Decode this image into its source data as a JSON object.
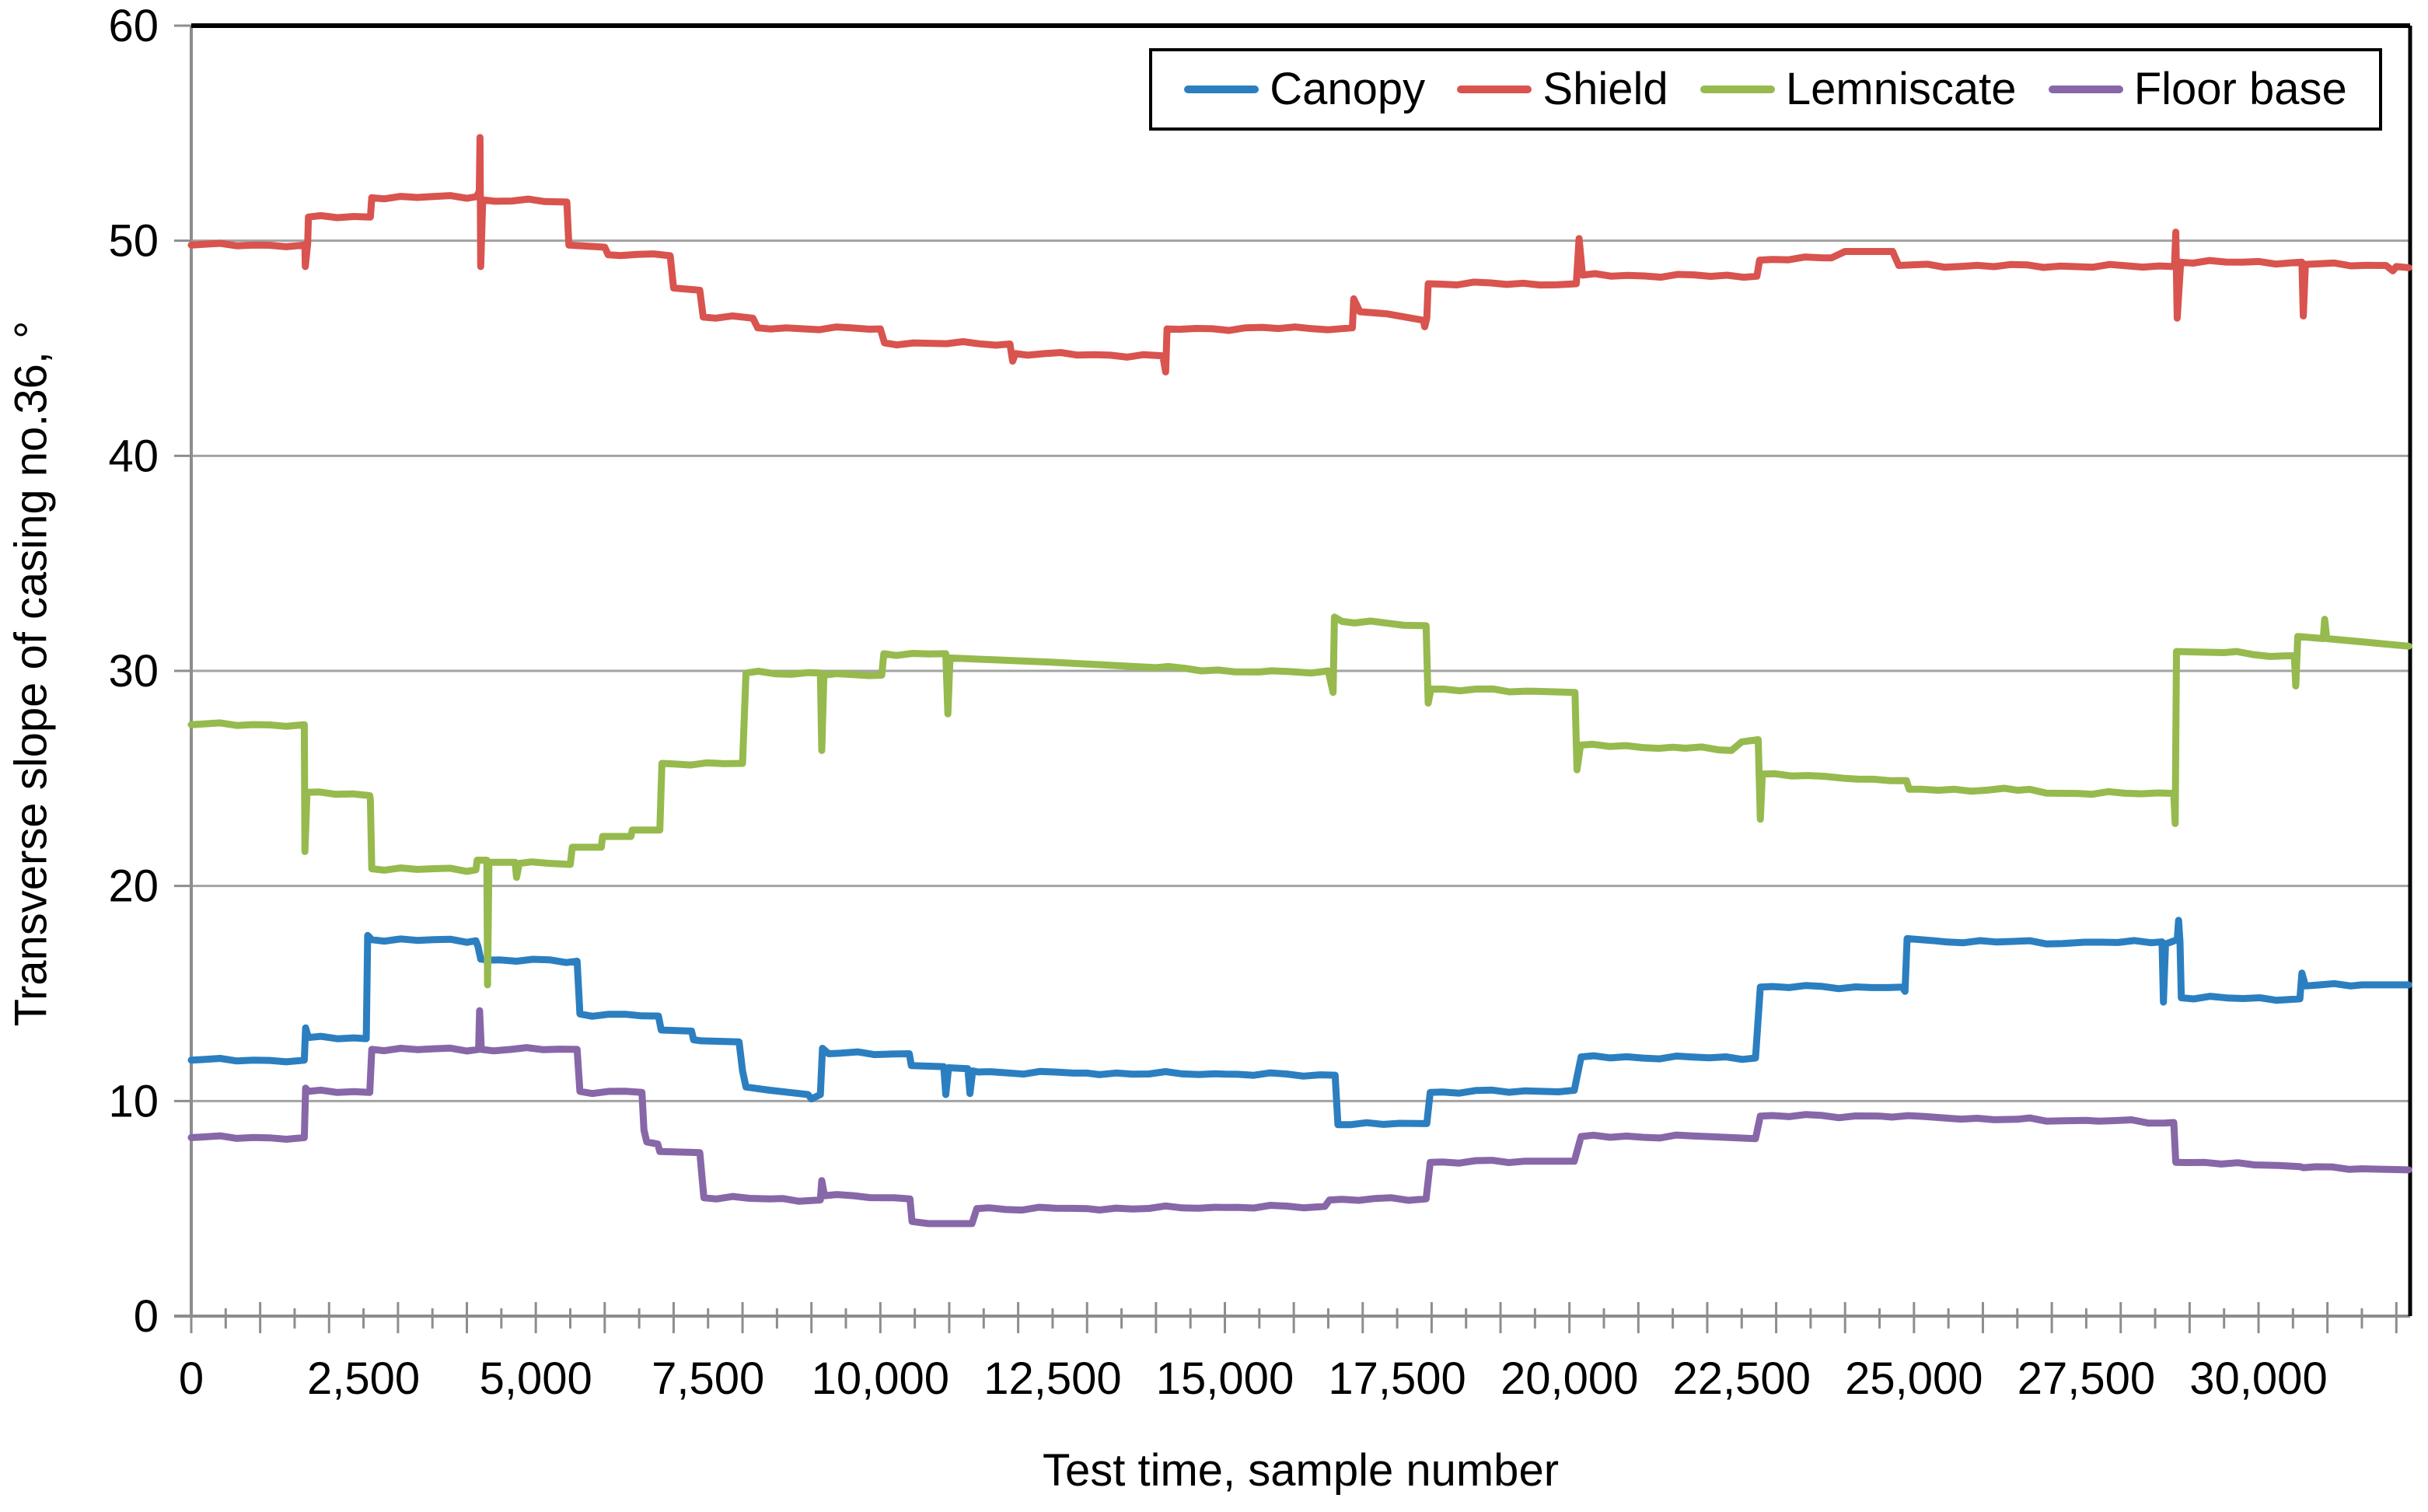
{
  "chart_data": {
    "type": "line",
    "title": "",
    "x_axis": {
      "title": "Test time, sample number",
      "min": 0,
      "max": 32200,
      "tick_labels": [
        "0",
        "2,500",
        "5,000",
        "7,500",
        "10,000",
        "12,500",
        "15,000",
        "17,500",
        "20,000",
        "22,500",
        "25,000",
        "27,500",
        "30,000"
      ],
      "label_interval": 2500,
      "major_tick_interval": 1000,
      "minor_tick_interval": 500
    },
    "y_axis": {
      "title": "Transverse slope of casing no.36, °",
      "min": 0,
      "max": 60,
      "tick_labels": [
        "0",
        "10",
        "20",
        "30",
        "40",
        "50",
        "60"
      ],
      "tick_interval": 10,
      "grid": true
    },
    "legend_position": "top-right",
    "colors": {
      "grid": "#A3A3A3",
      "axis_line": "#8D8D8D",
      "plot_border": "#000000",
      "text": "#000000"
    },
    "series": [
      {
        "name": "Canopy",
        "color": "#2B7FC0",
        "points": [
          [
            0,
            11.9
          ],
          [
            1640,
            11.9
          ],
          [
            1660,
            13.4
          ],
          [
            1700,
            12.95
          ],
          [
            2540,
            12.9
          ],
          [
            2560,
            17.7
          ],
          [
            2620,
            17.5
          ],
          [
            4130,
            17.45
          ],
          [
            4160,
            17.2
          ],
          [
            4200,
            16.6
          ],
          [
            4300,
            16.55
          ],
          [
            5600,
            16.5
          ],
          [
            5640,
            14.05
          ],
          [
            6780,
            13.95
          ],
          [
            6820,
            13.3
          ],
          [
            7260,
            13.25
          ],
          [
            7290,
            12.85
          ],
          [
            7400,
            12.8
          ],
          [
            7950,
            12.75
          ],
          [
            8000,
            11.4
          ],
          [
            8050,
            10.65
          ],
          [
            8400,
            10.5
          ],
          [
            8950,
            10.3
          ],
          [
            9000,
            10.1
          ],
          [
            9130,
            10.3
          ],
          [
            9160,
            12.45
          ],
          [
            9250,
            12.2
          ],
          [
            10420,
            12.2
          ],
          [
            10450,
            11.65
          ],
          [
            10920,
            11.6
          ],
          [
            10950,
            10.3
          ],
          [
            10990,
            11.55
          ],
          [
            11270,
            11.5
          ],
          [
            11300,
            10.35
          ],
          [
            11340,
            11.4
          ],
          [
            11420,
            11.35
          ],
          [
            13000,
            11.3
          ],
          [
            15000,
            11.25
          ],
          [
            16600,
            11.2
          ],
          [
            16640,
            8.9
          ],
          [
            17930,
            8.95
          ],
          [
            17980,
            10.4
          ],
          [
            20070,
            10.5
          ],
          [
            20170,
            12.05
          ],
          [
            22700,
            12.0
          ],
          [
            22770,
            15.3
          ],
          [
            24830,
            15.3
          ],
          [
            24870,
            15.1
          ],
          [
            24900,
            17.55
          ],
          [
            25300,
            17.45
          ],
          [
            27300,
            17.35
          ],
          [
            28600,
            17.4
          ],
          [
            28620,
            14.6
          ],
          [
            28650,
            17.3
          ],
          [
            28820,
            17.5
          ],
          [
            28840,
            18.4
          ],
          [
            28860,
            17.4
          ],
          [
            28880,
            14.8
          ],
          [
            30600,
            14.75
          ],
          [
            30630,
            15.95
          ],
          [
            30680,
            15.35
          ],
          [
            31500,
            15.4
          ],
          [
            32180,
            15.4
          ]
        ]
      },
      {
        "name": "Shield",
        "color": "#D9534F",
        "points": [
          [
            0,
            49.8
          ],
          [
            1650,
            49.8
          ],
          [
            1655,
            48.8
          ],
          [
            1690,
            49.9
          ],
          [
            1700,
            51.1
          ],
          [
            2600,
            51.1
          ],
          [
            2620,
            52.0
          ],
          [
            4140,
            52.05
          ],
          [
            4180,
            52.3
          ],
          [
            4190,
            54.8
          ],
          [
            4200,
            48.8
          ],
          [
            4230,
            51.9
          ],
          [
            5450,
            51.8
          ],
          [
            5480,
            49.8
          ],
          [
            6000,
            49.7
          ],
          [
            6050,
            49.35
          ],
          [
            6950,
            49.3
          ],
          [
            7000,
            47.8
          ],
          [
            7380,
            47.7
          ],
          [
            7430,
            46.45
          ],
          [
            8150,
            46.4
          ],
          [
            8220,
            45.95
          ],
          [
            10000,
            45.9
          ],
          [
            10060,
            45.25
          ],
          [
            11880,
            45.2
          ],
          [
            11920,
            44.4
          ],
          [
            11960,
            44.75
          ],
          [
            14100,
            44.65
          ],
          [
            14140,
            43.9
          ],
          [
            14160,
            45.9
          ],
          [
            16850,
            45.95
          ],
          [
            16870,
            47.3
          ],
          [
            16960,
            46.7
          ],
          [
            17350,
            46.6
          ],
          [
            17880,
            46.3
          ],
          [
            17900,
            46.0
          ],
          [
            17930,
            46.4
          ],
          [
            17950,
            48.0
          ],
          [
            20100,
            48.0
          ],
          [
            20140,
            50.1
          ],
          [
            20190,
            48.4
          ],
          [
            22720,
            48.35
          ],
          [
            22760,
            49.1
          ],
          [
            23800,
            49.2
          ],
          [
            24000,
            49.5
          ],
          [
            24690,
            49.5
          ],
          [
            24780,
            48.85
          ],
          [
            28780,
            48.8
          ],
          [
            28800,
            50.4
          ],
          [
            28820,
            46.4
          ],
          [
            28870,
            49.0
          ],
          [
            30630,
            49.0
          ],
          [
            30650,
            46.5
          ],
          [
            30680,
            48.9
          ],
          [
            31850,
            48.85
          ],
          [
            31950,
            48.6
          ],
          [
            32000,
            48.8
          ],
          [
            32180,
            48.75
          ]
        ]
      },
      {
        "name": "Lemniscate",
        "color": "#96BA4E",
        "points": [
          [
            0,
            27.5
          ],
          [
            1640,
            27.5
          ],
          [
            1650,
            21.6
          ],
          [
            1680,
            24.35
          ],
          [
            2590,
            24.2
          ],
          [
            2600,
            24.0
          ],
          [
            2620,
            20.8
          ],
          [
            4130,
            20.75
          ],
          [
            4150,
            21.2
          ],
          [
            4290,
            21.2
          ],
          [
            4300,
            15.4
          ],
          [
            4320,
            21.1
          ],
          [
            4700,
            21.1
          ],
          [
            4720,
            20.4
          ],
          [
            4760,
            21.05
          ],
          [
            5500,
            21.0
          ],
          [
            5530,
            21.8
          ],
          [
            5950,
            21.8
          ],
          [
            5970,
            22.3
          ],
          [
            6380,
            22.3
          ],
          [
            6400,
            22.6
          ],
          [
            6800,
            22.6
          ],
          [
            6830,
            25.7
          ],
          [
            8000,
            25.7
          ],
          [
            8050,
            29.9
          ],
          [
            9130,
            29.9
          ],
          [
            9150,
            26.3
          ],
          [
            9180,
            29.8
          ],
          [
            10020,
            29.8
          ],
          [
            10050,
            30.8
          ],
          [
            10950,
            30.8
          ],
          [
            10980,
            28.0
          ],
          [
            11010,
            30.6
          ],
          [
            12500,
            30.4
          ],
          [
            14000,
            30.15
          ],
          [
            15500,
            29.95
          ],
          [
            16250,
            29.9
          ],
          [
            16500,
            30.0
          ],
          [
            16570,
            29.0
          ],
          [
            16590,
            32.5
          ],
          [
            16700,
            32.3
          ],
          [
            17920,
            32.1
          ],
          [
            17950,
            28.5
          ],
          [
            17990,
            29.15
          ],
          [
            19500,
            29.05
          ],
          [
            20080,
            29.0
          ],
          [
            20110,
            25.4
          ],
          [
            20160,
            26.55
          ],
          [
            21500,
            26.45
          ],
          [
            22350,
            26.3
          ],
          [
            22500,
            26.7
          ],
          [
            22740,
            26.8
          ],
          [
            22770,
            23.1
          ],
          [
            22800,
            25.2
          ],
          [
            24000,
            25.0
          ],
          [
            24890,
            24.9
          ],
          [
            24930,
            24.5
          ],
          [
            26500,
            24.45
          ],
          [
            27400,
            24.3
          ],
          [
            28770,
            24.3
          ],
          [
            28790,
            22.9
          ],
          [
            28810,
            30.9
          ],
          [
            29500,
            30.85
          ],
          [
            30400,
            30.7
          ],
          [
            30520,
            30.7
          ],
          [
            30540,
            29.3
          ],
          [
            30570,
            31.6
          ],
          [
            30940,
            31.5
          ],
          [
            30960,
            32.4
          ],
          [
            30990,
            31.5
          ],
          [
            31500,
            31.35
          ],
          [
            32000,
            31.2
          ],
          [
            32180,
            31.15
          ]
        ]
      },
      {
        "name": "Floor base",
        "color": "#8767A8",
        "points": [
          [
            0,
            8.3
          ],
          [
            1640,
            8.3
          ],
          [
            1660,
            10.6
          ],
          [
            1700,
            10.45
          ],
          [
            2590,
            10.4
          ],
          [
            2620,
            12.4
          ],
          [
            4170,
            12.4
          ],
          [
            4185,
            14.2
          ],
          [
            4210,
            12.4
          ],
          [
            5600,
            12.4
          ],
          [
            5640,
            10.45
          ],
          [
            6540,
            10.4
          ],
          [
            6570,
            8.65
          ],
          [
            6610,
            8.1
          ],
          [
            6770,
            8.0
          ],
          [
            6800,
            7.65
          ],
          [
            7380,
            7.6
          ],
          [
            7440,
            5.5
          ],
          [
            8400,
            5.45
          ],
          [
            9130,
            5.4
          ],
          [
            9150,
            6.3
          ],
          [
            9190,
            5.6
          ],
          [
            10200,
            5.5
          ],
          [
            10430,
            5.45
          ],
          [
            10460,
            4.4
          ],
          [
            10700,
            4.3
          ],
          [
            11330,
            4.3
          ],
          [
            11400,
            5.0
          ],
          [
            13000,
            5.0
          ],
          [
            15000,
            5.05
          ],
          [
            16450,
            5.1
          ],
          [
            16520,
            5.4
          ],
          [
            17920,
            5.45
          ],
          [
            17980,
            7.15
          ],
          [
            19500,
            7.2
          ],
          [
            20070,
            7.2
          ],
          [
            20170,
            8.35
          ],
          [
            22000,
            8.35
          ],
          [
            22700,
            8.25
          ],
          [
            22770,
            9.3
          ],
          [
            24500,
            9.3
          ],
          [
            25500,
            9.2
          ],
          [
            26500,
            9.15
          ],
          [
            27500,
            9.1
          ],
          [
            28770,
            9.0
          ],
          [
            28800,
            7.15
          ],
          [
            30300,
            7.0
          ],
          [
            30600,
            6.95
          ],
          [
            30650,
            6.9
          ],
          [
            31500,
            6.85
          ],
          [
            32180,
            6.8
          ]
        ]
      }
    ]
  }
}
